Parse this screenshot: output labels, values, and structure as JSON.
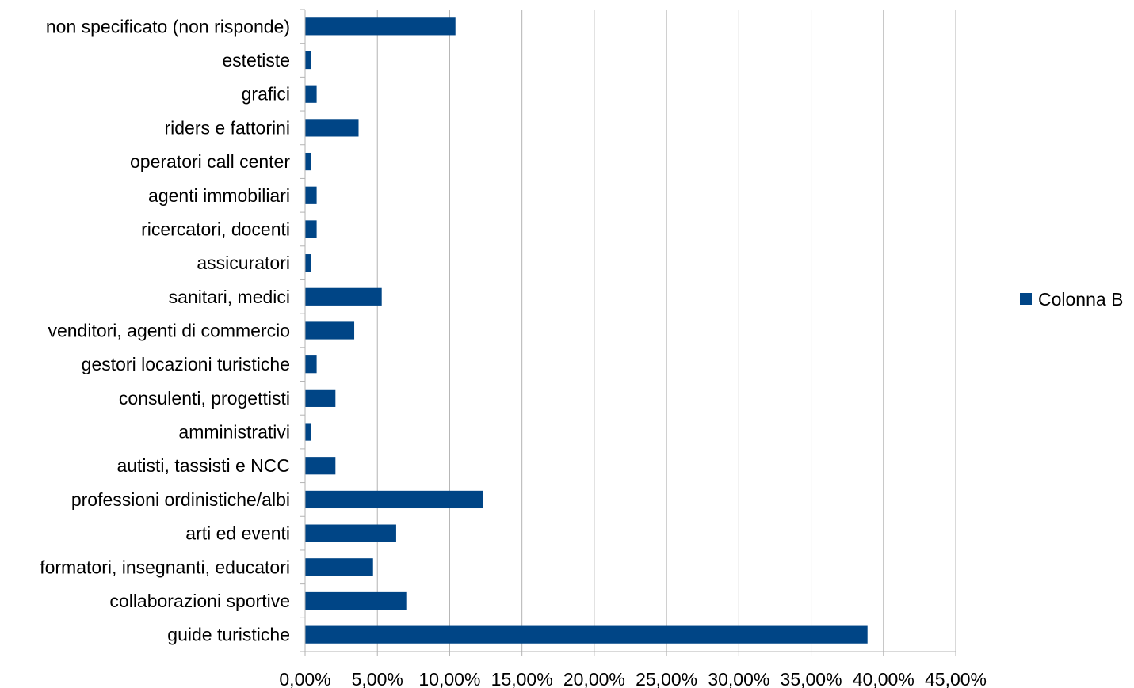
{
  "chart_data": {
    "type": "bar",
    "orientation": "horizontal",
    "categories": [
      "non specificato (non risponde)",
      "estetiste",
      "grafici",
      "riders e fattorini",
      "operatori call center",
      "agenti immobiliari",
      "ricercatori, docenti",
      "assicuratori",
      "sanitari, medici",
      "venditori, agenti di commercio",
      "gestori locazioni turistiche",
      "consulenti, progettisti",
      "amministrativi",
      "autisti, tassisti e NCC",
      "professioni ordinistiche/albi",
      "arti ed eventi",
      "formatori, insegnanti, educatori",
      "collaborazioni sportive",
      "guide turistiche"
    ],
    "series": [
      {
        "name": "Colonna B",
        "values": [
          10.4,
          0.4,
          0.8,
          3.7,
          0.4,
          0.8,
          0.8,
          0.4,
          5.3,
          3.4,
          0.8,
          2.1,
          0.4,
          2.1,
          12.3,
          6.3,
          4.7,
          7.0,
          38.9
        ]
      }
    ],
    "xlim": [
      0,
      45
    ],
    "x_ticks": [
      "0,00%",
      "5,00%",
      "10,00%",
      "15,00%",
      "20,00%",
      "25,00%",
      "30,00%",
      "35,00%",
      "40,00%",
      "45,00%"
    ],
    "grid": true,
    "legend_position": "right",
    "colors": {
      "bar": "#004586",
      "grid": "#b3b3b3",
      "axis": "#b3b3b3"
    }
  }
}
